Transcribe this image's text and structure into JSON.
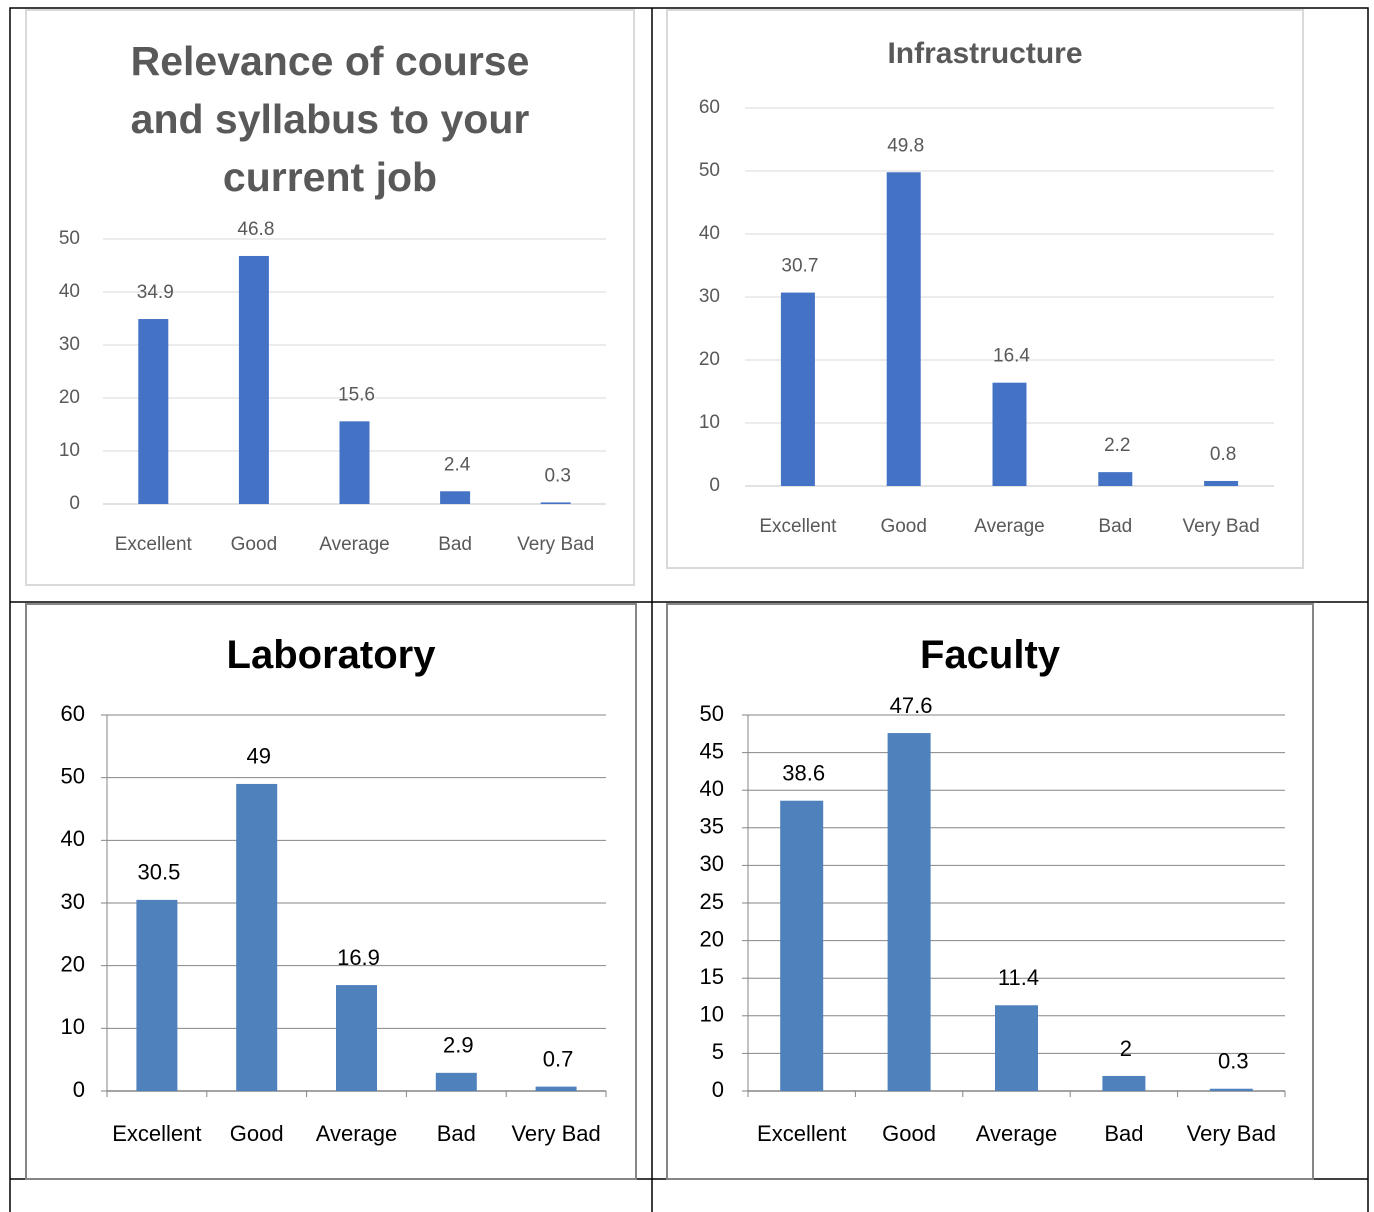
{
  "chart_data": [
    {
      "type": "bar",
      "title": "Relevance of course and syllabus to your current job",
      "categories": [
        "Excellent",
        "Good",
        "Average",
        "Bad",
        "Very Bad"
      ],
      "values": [
        34.9,
        46.8,
        15.6,
        2.4,
        0.3
      ],
      "color": "#4472c4",
      "ylim": [
        0,
        50
      ],
      "yticks": [
        0,
        10,
        20,
        30,
        40,
        50
      ],
      "grid": true
    },
    {
      "type": "bar",
      "title": "Infrastructure",
      "categories": [
        "Excellent",
        "Good",
        "Average",
        "Bad",
        "Very Bad"
      ],
      "values": [
        30.7,
        49.8,
        16.4,
        2.2,
        0.8
      ],
      "color": "#4472c4",
      "ylim": [
        0,
        60
      ],
      "yticks": [
        0,
        10,
        20,
        30,
        40,
        50,
        60
      ],
      "grid": true
    },
    {
      "type": "bar",
      "title": "Laboratory",
      "categories": [
        "Excellent",
        "Good",
        "Average",
        "Bad",
        "Very Bad"
      ],
      "values": [
        30.5,
        49,
        16.9,
        2.9,
        0.7
      ],
      "color": "#4f81bd",
      "ylim": [
        0,
        60
      ],
      "yticks": [
        0,
        10,
        20,
        30,
        40,
        50,
        60
      ],
      "grid": true
    },
    {
      "type": "bar",
      "title": "Faculty",
      "categories": [
        "Excellent",
        "Good",
        "Average",
        "Bad",
        "Very Bad"
      ],
      "values": [
        38.6,
        47.6,
        11.4,
        2,
        0.3
      ],
      "color": "#4f81bd",
      "ylim": [
        0,
        50
      ],
      "yticks": [
        0,
        5,
        10,
        15,
        20,
        25,
        30,
        35,
        40,
        45,
        50
      ],
      "grid": true
    }
  ]
}
